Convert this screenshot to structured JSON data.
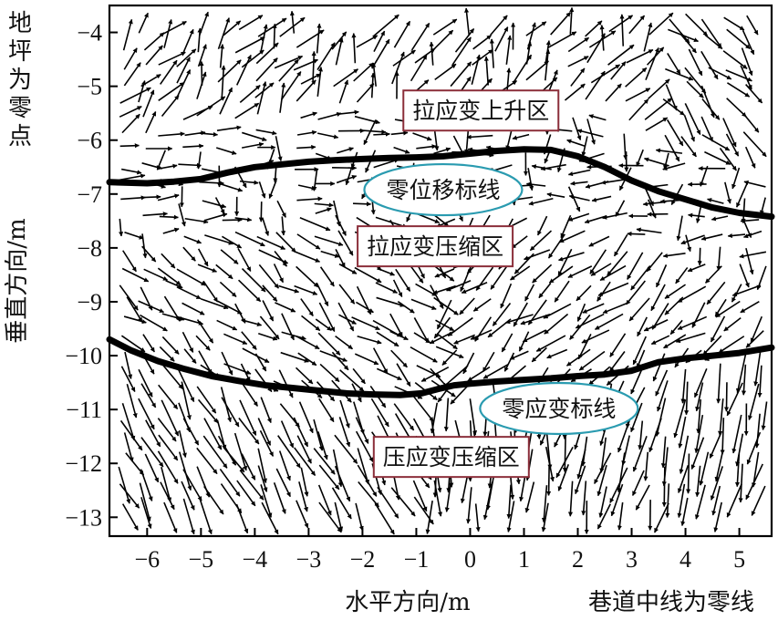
{
  "chart_data": {
    "type": "quiver",
    "xlim": [
      -6.7,
      5.6
    ],
    "ylim": [
      -13.35,
      -3.5
    ],
    "x_ticks": [
      -6,
      -5,
      -4,
      -3,
      -2,
      -1,
      0,
      1,
      2,
      3,
      4,
      5
    ],
    "y_ticks": [
      -4,
      -5,
      -6,
      -7,
      -8,
      -9,
      -10,
      -11,
      -12,
      -13
    ],
    "x_tick_labels": [
      "−6",
      "−5",
      "−4",
      "−3",
      "−2",
      "−1",
      "0",
      "1",
      "2",
      "3",
      "4",
      "5"
    ],
    "y_tick_labels": [
      "−4",
      "−5",
      "−6",
      "−7",
      "−8",
      "−9",
      "−10",
      "−11",
      "−12",
      "−13"
    ],
    "xlabel": "水平方向/m",
    "xlabel_note": "巷道中线为零线",
    "ylabel": "垂直方向/m",
    "ylabel_note": "地坪为零点",
    "grid": false,
    "zero_displacement_line": {
      "x": [
        -6.7,
        -6.0,
        -5.5,
        -5.0,
        -4.5,
        -4.0,
        -3.5,
        -3.0,
        -2.5,
        -2.0,
        -1.5,
        -1.0,
        -0.5,
        0.0,
        0.5,
        1.0,
        1.5,
        2.0,
        2.5,
        3.0,
        3.5,
        4.0,
        4.5,
        5.0,
        5.6
      ],
      "y": [
        -6.78,
        -6.8,
        -6.77,
        -6.72,
        -6.6,
        -6.5,
        -6.45,
        -6.4,
        -6.37,
        -6.35,
        -6.33,
        -6.32,
        -6.3,
        -6.25,
        -6.2,
        -6.17,
        -6.18,
        -6.3,
        -6.5,
        -6.75,
        -6.95,
        -7.1,
        -7.25,
        -7.35,
        -7.42
      ]
    },
    "zero_strain_line": {
      "x": [
        -6.7,
        -6.3,
        -5.8,
        -5.3,
        -4.8,
        -4.3,
        -3.8,
        -3.3,
        -2.8,
        -2.3,
        -1.8,
        -1.3,
        -0.9,
        -0.6,
        -0.3,
        0.0,
        0.5,
        1.0,
        1.5,
        2.0,
        2.5,
        3.0,
        3.5,
        4.0,
        4.5,
        5.0,
        5.6
      ],
      "y": [
        -9.7,
        -9.9,
        -10.1,
        -10.25,
        -10.38,
        -10.47,
        -10.55,
        -10.6,
        -10.65,
        -10.7,
        -10.72,
        -10.73,
        -10.7,
        -10.62,
        -10.55,
        -10.52,
        -10.48,
        -10.45,
        -10.42,
        -10.38,
        -10.35,
        -10.28,
        -10.12,
        -10.05,
        -10.0,
        -9.95,
        -9.85
      ]
    },
    "annotations": [
      {
        "text": "拉应变上升区",
        "style": "box",
        "x": 0.2,
        "y": -5.45
      },
      {
        "text": "零位移标线",
        "style": "ellipse",
        "x": -0.5,
        "y": -6.92
      },
      {
        "text": "拉应变压缩区",
        "style": "box",
        "x": -0.65,
        "y": -7.97
      },
      {
        "text": "零应变标线",
        "style": "ellipse",
        "x": 1.65,
        "y": -10.98
      },
      {
        "text": "压应变压缩区",
        "style": "box",
        "x": -0.35,
        "y": -11.88
      }
    ],
    "box_color": "#8b2e3a",
    "ellipse_color": "#2a9bb0",
    "arrow_color": "#000000",
    "line_color": "#000000"
  }
}
